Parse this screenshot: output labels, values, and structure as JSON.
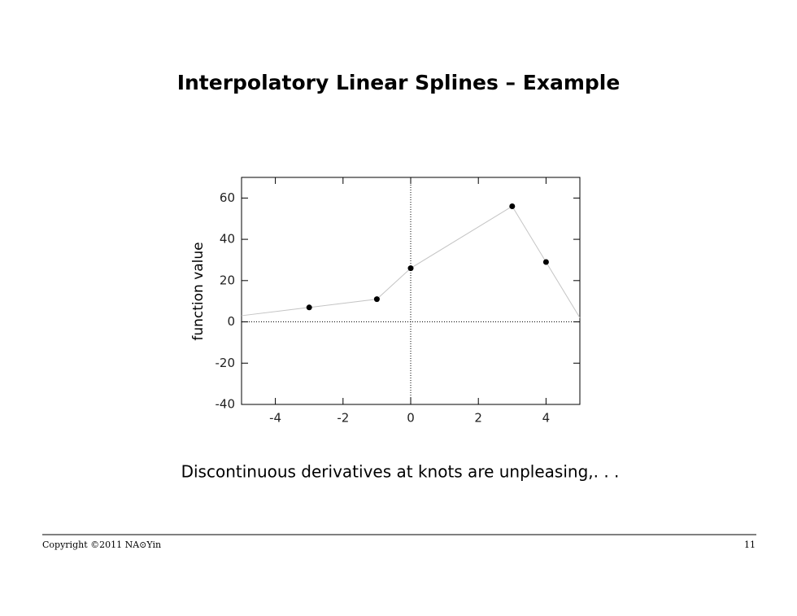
{
  "slide": {
    "title": "Interpolatory Linear Splines – Example",
    "caption": "Discontinuous derivatives at knots are unpleasing,. . .",
    "footer_left": "Copyright ©2011 NA⊙Yin",
    "page_number": "11"
  },
  "chart_data": {
    "type": "line",
    "ylabel": "function value",
    "xlim": [
      -5,
      5
    ],
    "xticks": [
      -4,
      -2,
      0,
      2,
      4
    ],
    "ylim": [
      -40,
      70
    ],
    "yticks": [
      -40,
      -20,
      0,
      20,
      40,
      60
    ],
    "zero_lines": true,
    "series": [
      {
        "style": "line",
        "color": "#c4c4c4",
        "x": [
          -5,
          -3,
          -1,
          0,
          3,
          4,
          5
        ],
        "values": [
          3,
          7,
          11,
          26,
          56,
          29,
          2
        ]
      },
      {
        "style": "markers",
        "color": "#000000",
        "x": [
          -3,
          -1,
          0,
          3,
          4
        ],
        "values": [
          7,
          11,
          26,
          56,
          29
        ]
      }
    ]
  }
}
